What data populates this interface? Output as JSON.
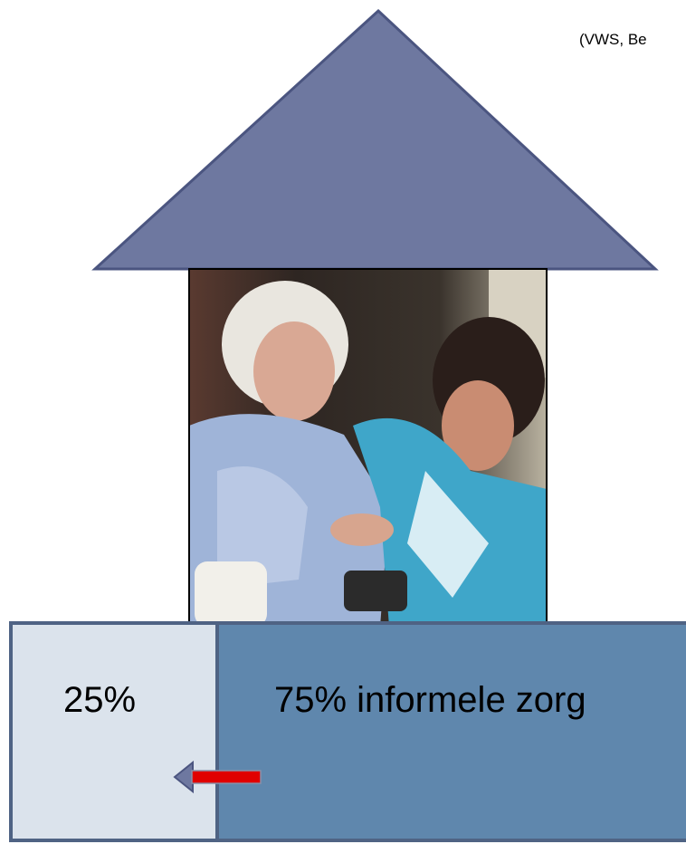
{
  "citation": "(VWS, Be",
  "blocks": [
    {
      "label": "25%"
    },
    {
      "label": "75% informele zorg"
    }
  ]
}
